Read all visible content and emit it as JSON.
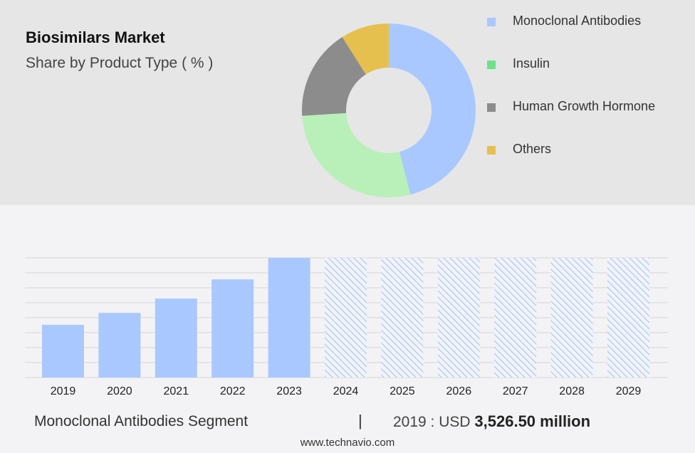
{
  "header": {
    "title": "Biosimilars Market",
    "subtitle": "Share by Product Type ( % )"
  },
  "chart_data": [
    {
      "type": "pie",
      "variant": "donut",
      "title": "Share by Product Type ( % )",
      "categories": [
        "Monoclonal Antibodies",
        "Insulin",
        "Human Growth Hormone",
        "Others"
      ],
      "values": [
        46,
        28,
        17,
        9
      ],
      "colors": [
        "#a9c8ff",
        "#b9f0b9",
        "#8c8c8c",
        "#e5c04f"
      ],
      "legend_colors": [
        "#a9c8ff",
        "#6fe08a",
        "#8c8c8c",
        "#e5c04f"
      ],
      "legend": "right"
    },
    {
      "type": "bar",
      "categories": [
        "2019",
        "2020",
        "2021",
        "2022",
        "2023",
        "2024",
        "2025",
        "2026",
        "2027",
        "2028",
        "2029"
      ],
      "values": [
        44,
        54,
        66,
        82,
        100,
        100,
        100,
        100,
        100,
        100,
        100
      ],
      "forecast_from": "2024",
      "ylim": [
        0,
        100
      ],
      "grid": true,
      "color": "#a9c8ff"
    }
  ],
  "footer": {
    "segment": "Monoclonal Antibodies Segment",
    "separator": "|",
    "value_prefix": "2019 : USD",
    "value": "3,526.50 million",
    "website": "www.technavio.com"
  }
}
